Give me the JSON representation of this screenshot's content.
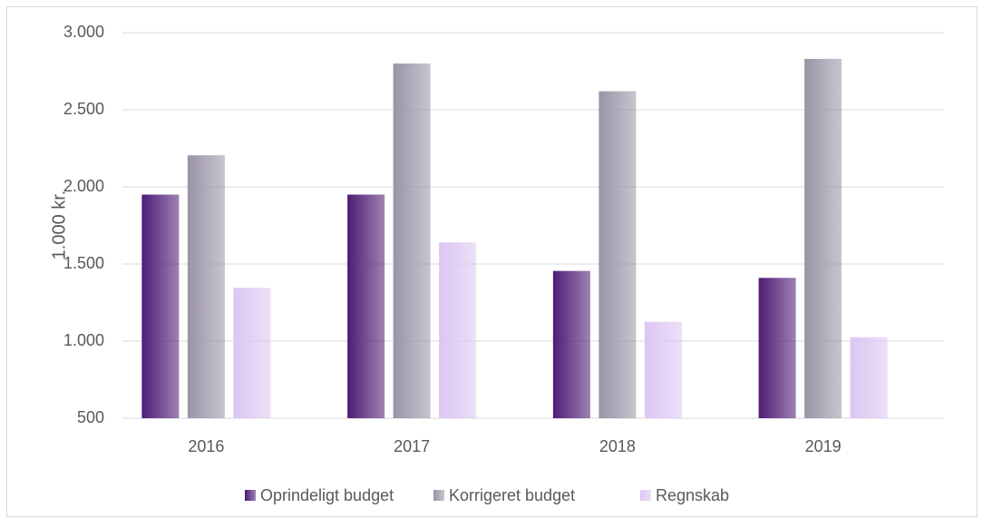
{
  "chart_data": {
    "type": "bar",
    "y_label": "1.000 kr.",
    "categories": [
      "2016",
      "2017",
      "2018",
      "2019"
    ],
    "series": [
      {
        "name": "Oprindeligt budget",
        "color": "#4e1c75",
        "values": [
          1950,
          1950,
          1455,
          1410
        ]
      },
      {
        "name": "Korrigeret budget",
        "color": "#9a94a6",
        "values": [
          2205,
          2800,
          2620,
          2830
        ]
      },
      {
        "name": "Regnskab",
        "color": "#dcc6f2",
        "values": [
          1345,
          1640,
          1125,
          1025
        ]
      }
    ],
    "ylim": [
      500,
      3000
    ],
    "yticks": [
      500,
      {
        "value": 1000,
        "label": "1.000"
      },
      {
        "value": 1500,
        "label": "1.500"
      },
      {
        "value": 2000,
        "label": "2.000"
      },
      {
        "value": 2500,
        "label": "2.500"
      },
      {
        "value": 3000,
        "label": "3.000"
      }
    ],
    "grid": true,
    "legend": "bottom"
  }
}
